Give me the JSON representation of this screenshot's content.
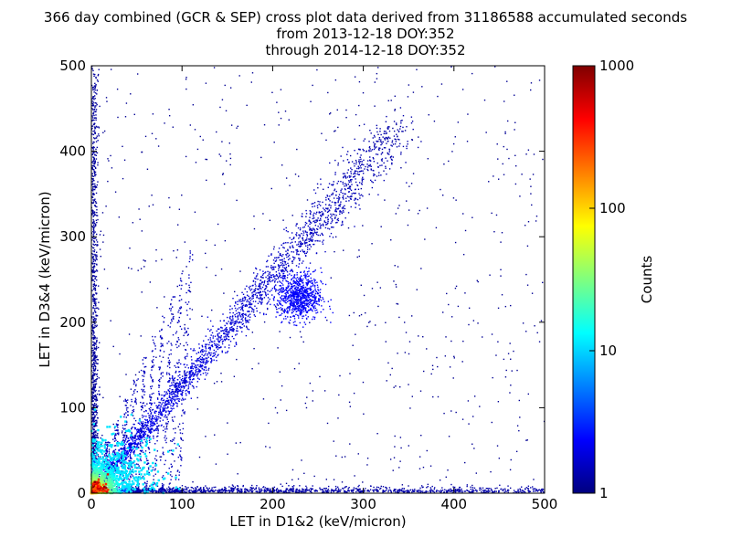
{
  "chart_data": {
    "type": "heatmap",
    "title_lines": [
      "366 day combined (GCR & SEP) cross plot data derived from 31186588 accumulated seconds",
      "from 2013-12-18 DOY:352",
      "through 2014-12-18 DOY:352"
    ],
    "xlabel": "LET in D1&2 (keV/micron)",
    "ylabel": "LET in D3&4 (keV/micron)",
    "xlim": [
      0,
      500
    ],
    "ylim": [
      0,
      500
    ],
    "xticks": [
      "0",
      "100",
      "200",
      "300",
      "400",
      "500"
    ],
    "yticks": [
      "0",
      "100",
      "200",
      "300",
      "400",
      "500"
    ],
    "colorbar": {
      "label": "Counts",
      "scale": "log",
      "range": [
        1,
        1000
      ],
      "ticks": [
        "1",
        "10",
        "100",
        "1000"
      ],
      "colormap": "jet"
    },
    "structures": [
      {
        "name": "diagonal-track",
        "from": [
          0,
          0
        ],
        "to": [
          340,
          430
        ],
        "peak_at": [
          230,
          230
        ]
      },
      {
        "name": "vertical-band-near-x0",
        "x": [
          0,
          10
        ],
        "y": [
          0,
          500
        ]
      },
      {
        "name": "horizontal-band-near-y0",
        "x": [
          0,
          500
        ],
        "y": [
          0,
          10
        ]
      },
      {
        "name": "hot-core",
        "x": [
          0,
          20
        ],
        "y": [
          0,
          20
        ],
        "counts": 1000
      }
    ]
  }
}
